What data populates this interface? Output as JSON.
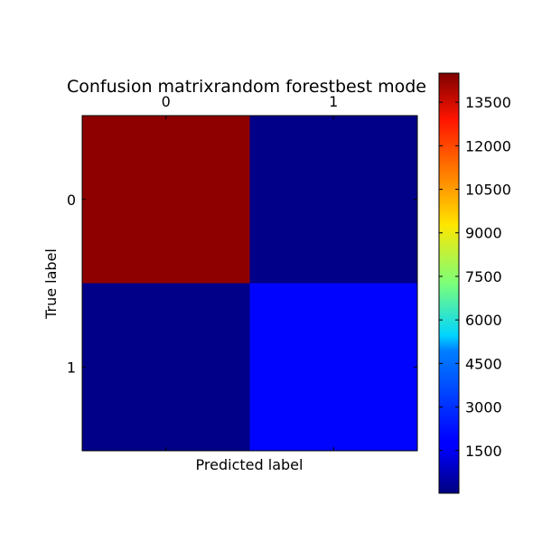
{
  "chart_data": {
    "type": "heatmap",
    "title": "Confusion matrixrandom forestbest mode",
    "xlabel": "Predicted label",
    "ylabel": "True label",
    "x_categories": [
      "0",
      "1"
    ],
    "y_categories": [
      "0",
      "1"
    ],
    "values": [
      [
        14300,
        150
      ],
      [
        150,
        1900
      ]
    ],
    "colormap": "jet",
    "color_range": [
      30,
      14500
    ],
    "colorbar_ticks": [
      "1500",
      "3000",
      "4500",
      "6000",
      "7500",
      "9000",
      "10500",
      "12000",
      "13500"
    ],
    "x_ticks_position": "top",
    "grid": false,
    "legend": "colorbar-right"
  }
}
